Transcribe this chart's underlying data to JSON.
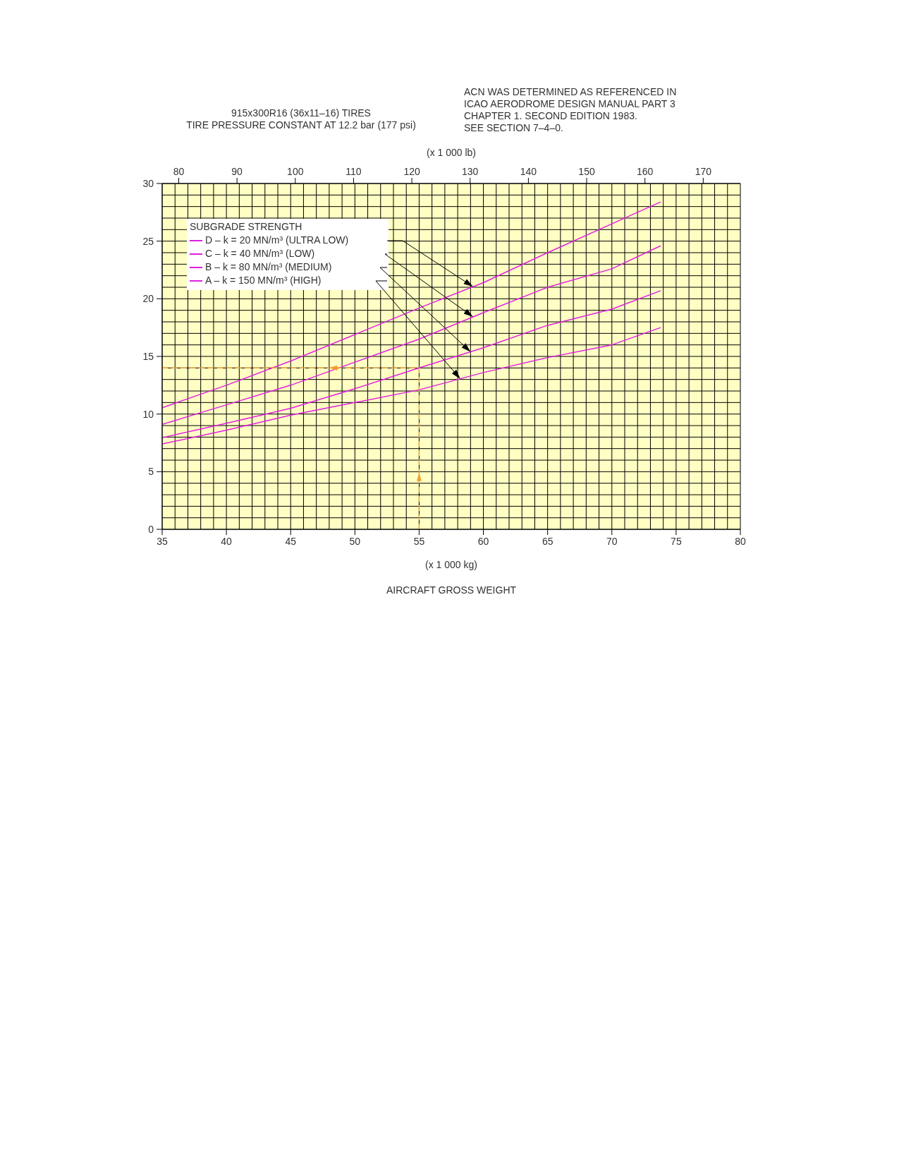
{
  "chart_data": {
    "type": "line",
    "title": "915x300R16 (36x11–16) TIRES",
    "subtitle": "TIRE PRESSURE CONSTANT AT 12.2 bar (177 psi)",
    "xlabel": "(x 1 000 kg)",
    "x2label": "(x 1 000 lb)",
    "legend_title": "SUBGRADE STRENGTH",
    "annotations": [
      "ACN WAS DETERMINED AS REFERENCED IN\nICAO AERODROME DESIGN MANUAL PART 3\nCHAPTER 1. SECOND EDITION 1983.\nSEE SECTION 7–4–0.",
      "AIRCRAFT GROSS WEIGHT"
    ],
    "xlim": [
      35,
      80
    ],
    "xticks": [
      35,
      {
        "value": 36,
        "label": null
      },
      {
        "value": 37,
        "label": null
      },
      {
        "value": 38,
        "label": null
      },
      {
        "value": 39,
        "label": null
      },
      40,
      {
        "value": 41,
        "label": null
      },
      {
        "value": 42,
        "label": null
      },
      {
        "value": 43,
        "label": null
      },
      {
        "value": 44,
        "label": null
      },
      45,
      {
        "value": 46,
        "label": null
      },
      {
        "value": 47,
        "label": null
      },
      {
        "value": 48,
        "label": null
      },
      {
        "value": 49,
        "label": null
      },
      50,
      {
        "value": 51,
        "label": null
      },
      {
        "value": 52,
        "label": null
      },
      {
        "value": 53,
        "label": null
      },
      {
        "value": 54,
        "label": null
      },
      55,
      {
        "value": 56,
        "label": null
      },
      {
        "value": 57,
        "label": null
      },
      {
        "value": 58,
        "label": null
      },
      {
        "value": 59,
        "label": null
      },
      60,
      {
        "value": 61,
        "label": null
      },
      {
        "value": 62,
        "label": null
      },
      {
        "value": 63,
        "label": null
      },
      {
        "value": 64,
        "label": null
      },
      65,
      {
        "value": 66,
        "label": null
      },
      {
        "value": 67,
        "label": null
      },
      {
        "value": 68,
        "label": null
      },
      {
        "value": 69,
        "label": null
      },
      70,
      {
        "value": 71,
        "label": null
      },
      {
        "value": 72,
        "label": null
      },
      {
        "value": 73,
        "label": null
      },
      {
        "value": 74,
        "label": null
      },
      75,
      {
        "value": 76,
        "label": null
      },
      {
        "value": 77,
        "label": null
      },
      {
        "value": 78,
        "label": null
      },
      {
        "value": 79,
        "label": null
      },
      80
    ],
    "x2lim": [
      77.16,
      176.37
    ],
    "x2ticks": [
      80,
      90,
      100,
      110,
      120,
      130,
      140,
      150,
      160,
      170
    ],
    "ylim": [
      0,
      30
    ],
    "yticks": [
      0,
      {
        "value": 1,
        "label": null
      },
      {
        "value": 2,
        "label": null
      },
      {
        "value": 3,
        "label": null
      },
      {
        "value": 4,
        "label": null
      },
      5,
      {
        "value": 6,
        "label": null
      },
      {
        "value": 7,
        "label": null
      },
      {
        "value": 8,
        "label": null
      },
      {
        "value": 9,
        "label": null
      },
      10,
      {
        "value": 11,
        "label": null
      },
      {
        "value": 12,
        "label": null
      },
      {
        "value": 13,
        "label": null
      },
      {
        "value": 14,
        "label": null
      },
      15,
      {
        "value": 16,
        "label": null
      },
      {
        "value": 17,
        "label": null
      },
      {
        "value": 18,
        "label": null
      },
      {
        "value": 19,
        "label": null
      },
      20,
      {
        "value": 21,
        "label": null
      },
      {
        "value": 22,
        "label": null
      },
      {
        "value": 23,
        "label": null
      },
      {
        "value": 24,
        "label": null
      },
      25,
      {
        "value": 26,
        "label": null
      },
      {
        "value": 27,
        "label": null
      },
      {
        "value": 28,
        "label": null
      },
      {
        "value": 29,
        "label": null
      },
      30
    ],
    "grid": true,
    "legend": "top left",
    "marker": "none",
    "line_style": "solid",
    "series": [
      {
        "name": "D – k = 20 MN/m³ (ULTRA LOW)",
        "color": "#e020e0",
        "x": [
          35,
          40,
          45,
          50,
          55,
          60,
          65,
          70,
          73.8
        ],
        "values": [
          10.55,
          12.5,
          14.6,
          16.9,
          19.2,
          21.4,
          24.0,
          26.5,
          28.4
        ]
      },
      {
        "name": "C – k = 40 MN/m³ (LOW)",
        "color": "#e020e0",
        "x": [
          35,
          40,
          45,
          50,
          55,
          60,
          65,
          70,
          73.8
        ],
        "values": [
          9.1,
          10.8,
          12.5,
          14.5,
          16.5,
          18.8,
          21.0,
          22.6,
          24.6
        ]
      },
      {
        "name": "B – k = 80 MN/m³ (MEDIUM)",
        "color": "#e020e0",
        "x": [
          35,
          40,
          45,
          50,
          55,
          60,
          65,
          70,
          73.8
        ],
        "values": [
          7.95,
          9.2,
          10.5,
          12.2,
          14.0,
          15.75,
          17.7,
          19.1,
          20.7
        ]
      },
      {
        "name": "A – k = 150 MN/m³ (HIGH)",
        "color": "#e020e0",
        "x": [
          35,
          40,
          45,
          50,
          55,
          60,
          65,
          70,
          73.8
        ],
        "values": [
          7.4,
          8.6,
          9.9,
          11.0,
          12.1,
          13.6,
          14.9,
          16.0,
          17.5
        ]
      },
      {
        "type": "line",
        "color": "#f0a030",
        "line_style": "dashed",
        "x": [
          55,
          55,
          35
        ],
        "values": [
          0,
          14,
          14
        ]
      }
    ]
  }
}
